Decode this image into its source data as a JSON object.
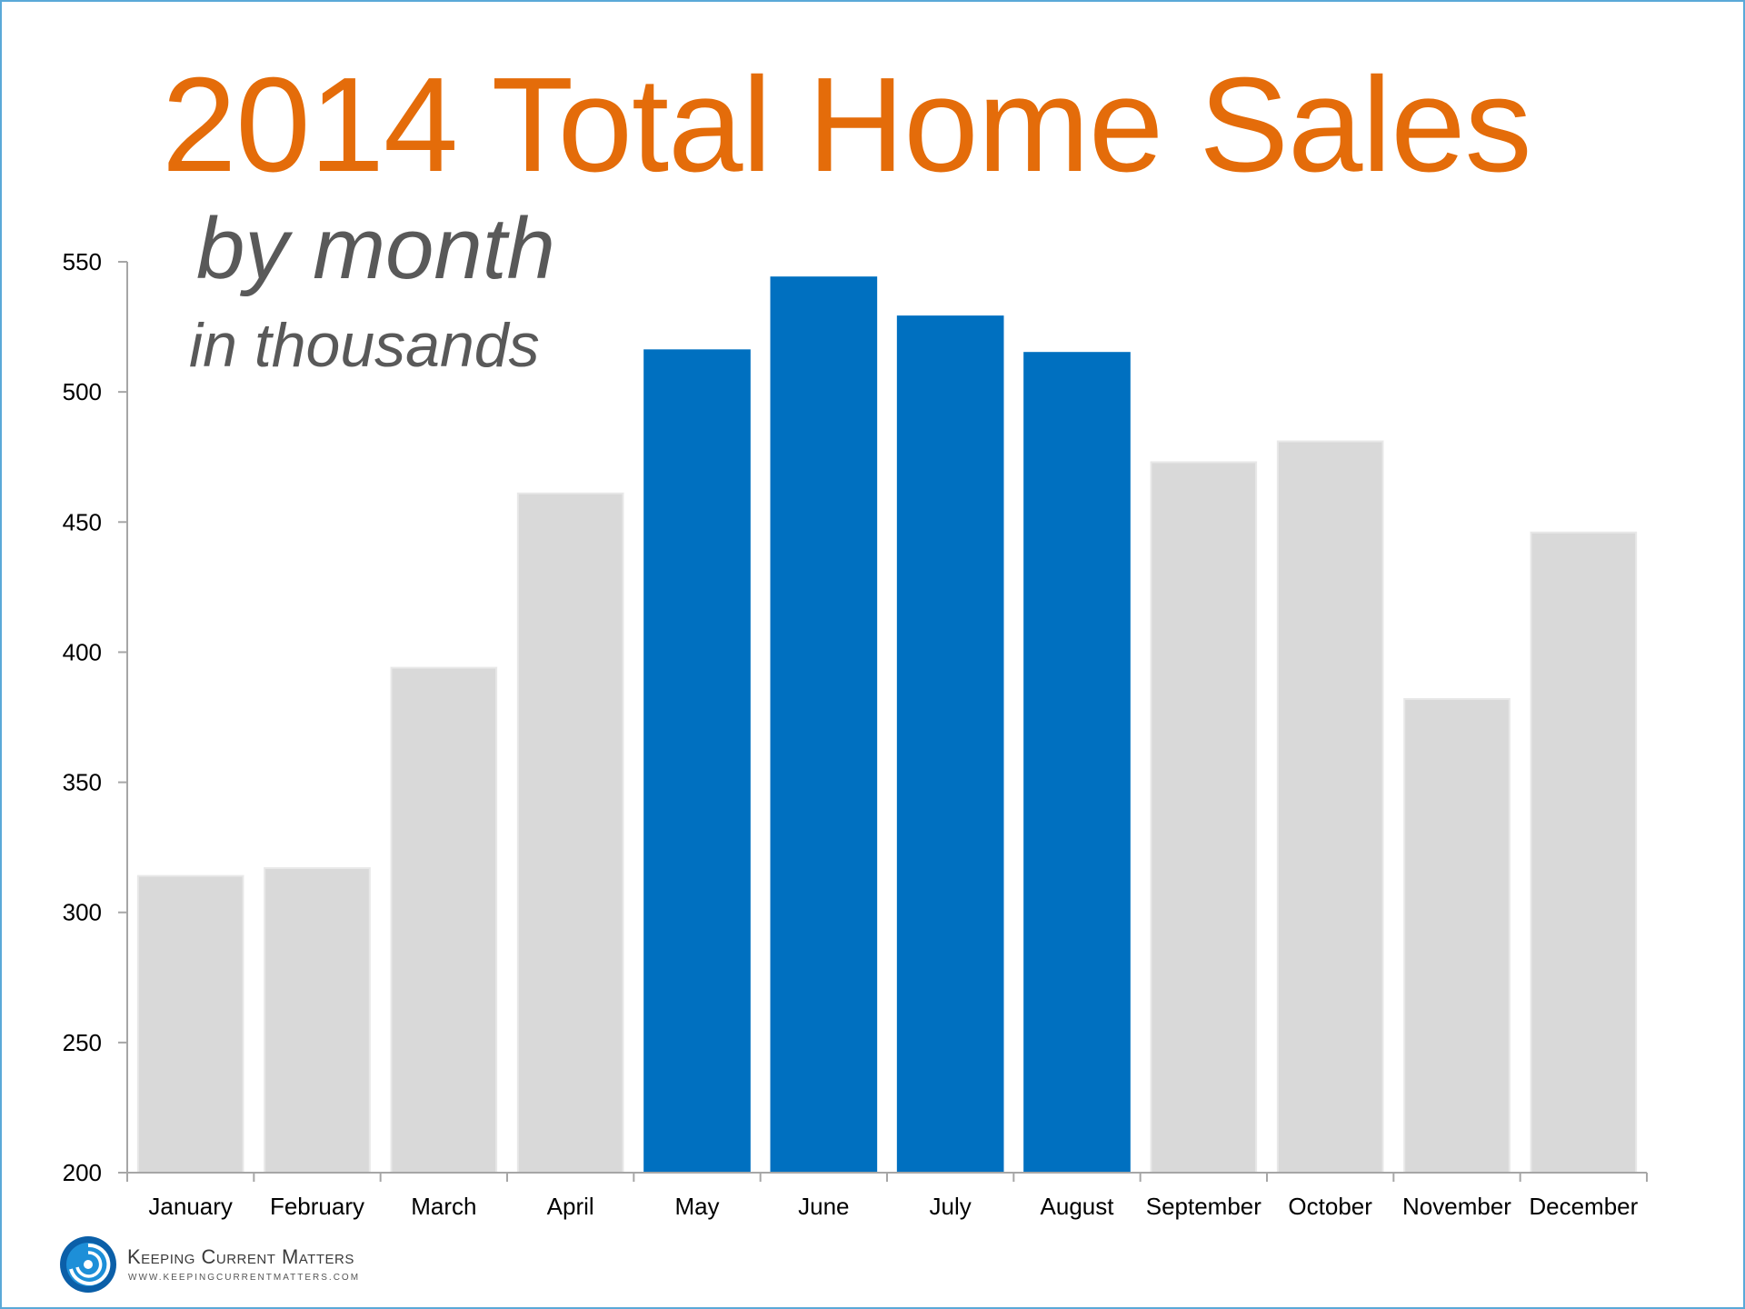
{
  "chart_data": {
    "type": "bar",
    "title": "2014 Total Home Sales",
    "subtitle": "by month",
    "unit_note": "in thousands",
    "categories": [
      "January",
      "February",
      "March",
      "April",
      "May",
      "June",
      "July",
      "August",
      "September",
      "October",
      "November",
      "December"
    ],
    "values": [
      314,
      317,
      394,
      461,
      516,
      544,
      529,
      515,
      473,
      481,
      382,
      446
    ],
    "highlighted": [
      "May",
      "June",
      "July",
      "August"
    ],
    "ylim": [
      200,
      550
    ],
    "yticks": [
      200,
      250,
      300,
      350,
      400,
      450,
      500,
      550
    ],
    "xlabel": "",
    "ylabel": "",
    "grid": false,
    "colors": {
      "bar_default": "#d9d9d9",
      "bar_default_outline": "#e8e8e8",
      "bar_highlight": "#0070c0",
      "axis": "#a6a6a6",
      "title": "#e46c0a",
      "subtitle": "#595959",
      "tick_text": "#000000",
      "border": "#5aa9d8"
    }
  },
  "branding": {
    "name": "Keeping Current Matters",
    "url": "WWW.KEEPINGCURRENTMATTERS.COM",
    "logo_icon": "swirl-logo-icon"
  }
}
